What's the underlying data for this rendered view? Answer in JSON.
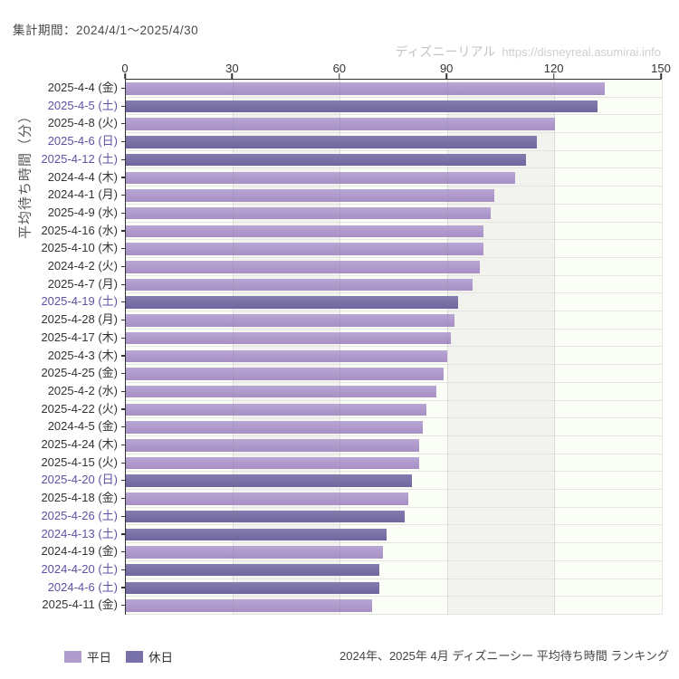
{
  "header": {
    "period_label": "集計期間：2024/4/1～2025/4/30"
  },
  "watermark": {
    "brand": "ディズニーリアル",
    "url": "https://disneyreal.asumirai.info"
  },
  "chart_data": {
    "type": "bar",
    "orientation": "horizontal",
    "ylabel": "平均待ち時間（分）",
    "xlim": [
      0,
      150
    ],
    "x_ticks": [
      0,
      30,
      60,
      90,
      120,
      150
    ],
    "grid": true,
    "legend_position": "bottom-left",
    "categories": [
      "2025-4-4 (金)",
      "2025-4-5 (土)",
      "2025-4-8 (火)",
      "2025-4-6 (日)",
      "2025-4-12 (土)",
      "2024-4-4 (木)",
      "2024-4-1 (月)",
      "2025-4-9 (水)",
      "2025-4-16 (水)",
      "2025-4-10 (木)",
      "2024-4-2 (火)",
      "2025-4-7 (月)",
      "2025-4-19 (土)",
      "2025-4-28 (月)",
      "2025-4-17 (木)",
      "2025-4-3 (木)",
      "2025-4-25 (金)",
      "2025-4-2 (水)",
      "2025-4-22 (火)",
      "2024-4-5 (金)",
      "2025-4-24 (木)",
      "2025-4-15 (火)",
      "2025-4-20 (日)",
      "2025-4-18 (金)",
      "2025-4-26 (土)",
      "2024-4-13 (土)",
      "2024-4-19 (金)",
      "2024-4-20 (土)",
      "2024-4-6 (土)",
      "2025-4-11 (金)"
    ],
    "values": [
      134,
      132,
      120,
      115,
      112,
      109,
      103,
      102,
      100,
      100,
      99,
      97,
      93,
      92,
      91,
      90,
      89,
      87,
      84,
      83,
      82,
      82,
      80,
      79,
      78,
      73,
      72,
      71,
      71,
      69
    ],
    "day_types": [
      "weekday",
      "holiday",
      "weekday",
      "holiday",
      "holiday",
      "weekday",
      "weekday",
      "weekday",
      "weekday",
      "weekday",
      "weekday",
      "weekday",
      "holiday",
      "weekday",
      "weekday",
      "weekday",
      "weekday",
      "weekday",
      "weekday",
      "weekday",
      "weekday",
      "weekday",
      "holiday",
      "weekday",
      "holiday",
      "holiday",
      "weekday",
      "holiday",
      "holiday",
      "weekday"
    ],
    "series_colors": {
      "weekday": "#b09ccd",
      "holiday": "#7870a8"
    },
    "label_colors": {
      "weekday": "#333333",
      "holiday": "#5b53a4"
    }
  },
  "legend": {
    "items": [
      {
        "label": "平日",
        "type": "weekday",
        "color": "#b09ccd"
      },
      {
        "label": "休日",
        "type": "holiday",
        "color": "#7870a8"
      }
    ]
  },
  "footer": {
    "caption": "2024年、2025年 4月 ディズニーシー 平均待ち時間 ランキング"
  }
}
